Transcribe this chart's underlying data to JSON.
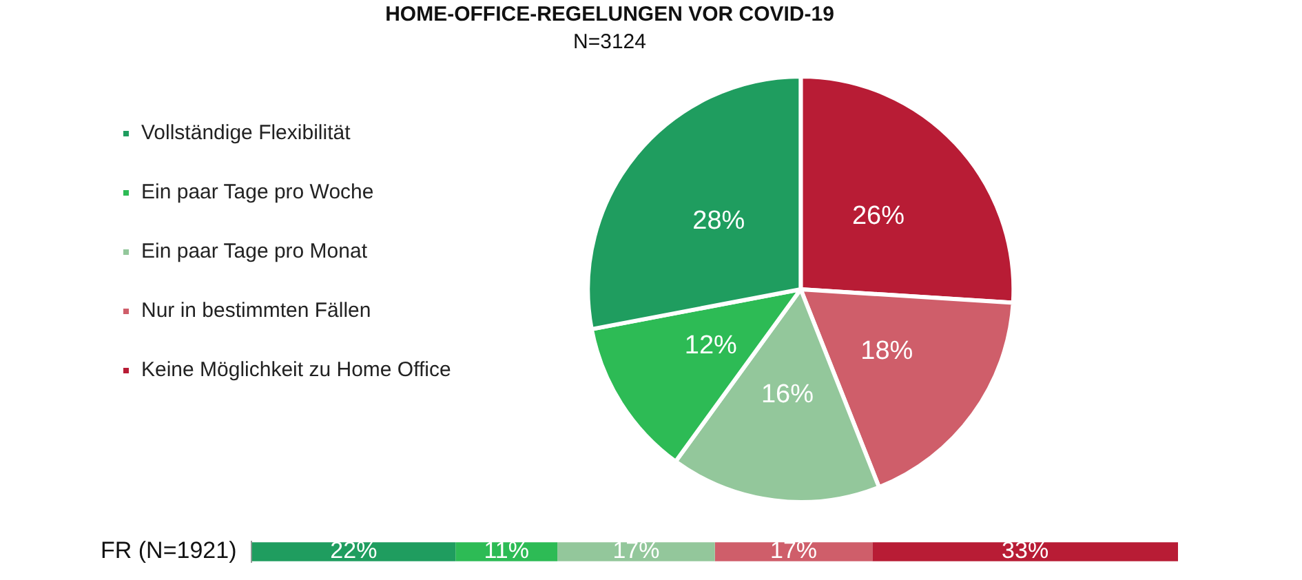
{
  "chart_data": [
    {
      "type": "pie",
      "title": "HOME-OFFICE-REGELUNGEN VOR COVID-19",
      "subtitle": "N=3124",
      "categories": [
        "Vollständige Flexibilität",
        "Ein paar Tage pro Woche",
        "Ein paar Tage pro Monat",
        "Nur in bestimmten Fällen",
        "Keine Möglichkeit zu Home Office"
      ],
      "values": [
        28,
        12,
        16,
        18,
        26
      ],
      "value_labels": [
        "28%",
        "12%",
        "16%",
        "18%",
        "26%"
      ],
      "colors": [
        "#1f9d5f",
        "#2dbb55",
        "#93c79b",
        "#cf5e6a",
        "#b81c35"
      ],
      "legend": "left"
    },
    {
      "type": "bar",
      "orientation": "horizontal",
      "stacked": true,
      "categories": [
        "FR (N=1921)"
      ],
      "xlim": [
        0,
        100
      ],
      "tick_labels": "y",
      "series": [
        {
          "color": "#1f9d5f",
          "values": [
            22
          ],
          "value_labels": [
            "22%"
          ]
        },
        {
          "color": "#2dbb55",
          "values": [
            11
          ],
          "value_labels": [
            "11%"
          ]
        },
        {
          "color": "#93c79b",
          "values": [
            17
          ],
          "value_labels": [
            "17%"
          ]
        },
        {
          "color": "#cf5e6a",
          "values": [
            17
          ],
          "value_labels": [
            "17%"
          ]
        },
        {
          "color": "#b81c35",
          "values": [
            33
          ],
          "value_labels": [
            "33%"
          ]
        }
      ]
    }
  ]
}
